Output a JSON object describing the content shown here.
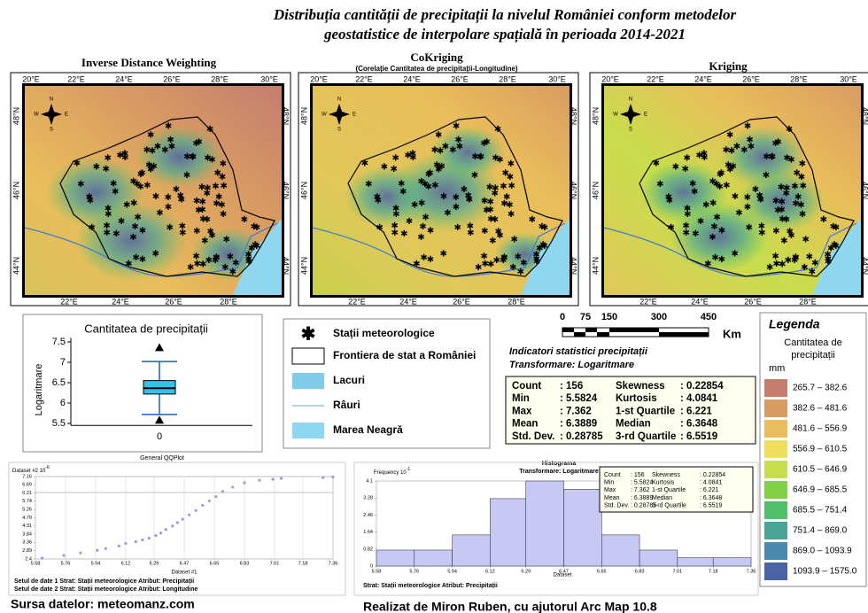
{
  "title": {
    "line1": "Distribuția cantității de precipitații la nivelul României conform metodelor",
    "line2": "geostatistice de interpolare spațială în perioada 2014-2021"
  },
  "maps": {
    "panels": [
      {
        "title": "Inverse Distance Weighting"
      },
      {
        "title": "CoKriging",
        "subtitle": "(Corelație Cantitatea de precipitații-Longitudine)"
      },
      {
        "title": "Kriging"
      }
    ],
    "lon_top": [
      "20°E",
      "22°E",
      "24°E",
      "26°E",
      "28°E",
      "30°E"
    ],
    "lon_bottom": [
      "22°E",
      "24°E",
      "26°E",
      "28°E"
    ],
    "lat": [
      "48°N",
      "46°N",
      "44°N"
    ],
    "compass": [
      "N",
      "E",
      "S",
      "W"
    ]
  },
  "boxplot": {
    "title": "Cantitatea de precipitații",
    "ylabel": "Logaritmare",
    "category": "0",
    "ylim": [
      5.45,
      7.6
    ],
    "yticks": [
      5.5,
      6,
      6.5,
      7,
      7.5
    ],
    "whisker_low": 5.72,
    "q1": 6.221,
    "median": 6.3648,
    "q3": 6.5519,
    "whisker_high": 7.02,
    "outliers": [
      7.362,
      5.5824
    ]
  },
  "legend": {
    "items": [
      "Stații meteorologice",
      "Frontiera de stat a României",
      "Lacuri",
      "Râuri",
      "Marea Neagră"
    ]
  },
  "scale": {
    "labels": [
      "0",
      "75",
      "150",
      "300",
      "450"
    ],
    "unit": "Km"
  },
  "stats": {
    "heading": "Indicatori statistici precipitații",
    "transform": "Transformare: Logaritmare",
    "rows": [
      [
        "Count",
        ": 156",
        "Skewness",
        ": 0.22854"
      ],
      [
        "Min",
        ": 5.5824",
        "Kurtosis",
        ": 4.0841"
      ],
      [
        "Max",
        ": 7.362",
        "1-st Quartile",
        ": 6.221"
      ],
      [
        "Mean",
        ": 6.3889",
        "Median",
        ": 6.3648"
      ],
      [
        "Std. Dev.",
        ": 0.28785",
        "3-rd Quartile",
        ": 6.5519"
      ]
    ]
  },
  "classes": {
    "title": "Legenda",
    "subtitle1": "Cantitatea de",
    "subtitle2": "precipitații",
    "unit": "mm",
    "items": [
      {
        "label": "265.7 – 382.6",
        "color": "#c57d70"
      },
      {
        "label": "382.6 – 481.6",
        "color": "#d99c62"
      },
      {
        "label": "481.6 – 556.9",
        "color": "#e9bd5b"
      },
      {
        "label": "556.9 – 610.5",
        "color": "#f0df5c"
      },
      {
        "label": "610.5 – 646.9",
        "color": "#c8de4c"
      },
      {
        "label": "646.9 – 685.5",
        "color": "#84cf48"
      },
      {
        "label": "685.5 – 751.4",
        "color": "#52bf6a"
      },
      {
        "label": "751.4 – 869.0",
        "color": "#4ba597"
      },
      {
        "label": "869.0 – 1093.9",
        "color": "#4b89b1"
      },
      {
        "label": "1093.9 – 1575.0",
        "color": "#4a64a5"
      }
    ]
  },
  "qqplot": {
    "title": "General QQPlot",
    "ylabel": "Dataset #2 10",
    "yexp": "-6",
    "xlabel": "Dataset #1",
    "xlim": [
      5.58,
      7.36
    ],
    "xticks": [
      5.58,
      5.76,
      5.94,
      6.12,
      6.29,
      6.47,
      6.65,
      6.83,
      7.01,
      7.18,
      7.36
    ],
    "ylim": [
      2.4,
      7.16
    ],
    "yticks": [
      7.16,
      6.69,
      6.21,
      5.74,
      5.26,
      4.79,
      4.31,
      3.84,
      3.36,
      2.89,
      2.4
    ],
    "x": [
      5.62,
      5.75,
      5.85,
      5.95,
      6.0,
      6.08,
      6.12,
      6.18,
      6.22,
      6.26,
      6.3,
      6.33,
      6.36,
      6.4,
      6.43,
      6.46,
      6.5,
      6.54,
      6.58,
      6.62,
      6.66,
      6.7,
      6.76,
      6.83,
      6.92,
      7.0,
      7.05,
      7.3,
      7.36
    ],
    "y": [
      2.45,
      2.6,
      2.75,
      2.9,
      3.0,
      3.15,
      3.3,
      3.4,
      3.5,
      3.6,
      3.75,
      3.9,
      4.1,
      4.3,
      4.5,
      4.7,
      4.95,
      5.2,
      5.5,
      5.75,
      6.0,
      6.3,
      6.55,
      6.8,
      6.95,
      7.0,
      7.05,
      7.1,
      7.14
    ],
    "note1": "Setul de date 1 Strat: Stații meteorologice Atribut: Precipitații",
    "note2": "Setul de date 2 Strat: Stații meteorologice Atribut: Longitudine"
  },
  "histogram": {
    "title": "Histograma",
    "transform": "Transformare: Logaritmare",
    "ylabel": "Frequency 10",
    "yexp": "-1",
    "xlabel": "Dataset",
    "bins": [
      5.58,
      5.76,
      5.94,
      6.12,
      6.29,
      6.47,
      6.65,
      6.83,
      7.01,
      7.18,
      7.36
    ],
    "values": [
      0.77,
      0.77,
      1.5,
      3.25,
      4.1,
      3.7,
      1.5,
      0.77,
      0.4,
      0.4
    ],
    "xlim": [
      5.58,
      7.36
    ],
    "ylim": [
      0,
      4.1
    ],
    "yticks": [
      0,
      0.82,
      1.64,
      2.46,
      3.28,
      4.1
    ],
    "color": "#c8c8f5",
    "note": "Strat: Stații meteorologice Atribut: Precipitații"
  },
  "footer": {
    "source": "Sursa datelor: meteomanz.com",
    "author": "Realizat de Miron Ruben, cu ajutorul Arc Map 10.8"
  }
}
